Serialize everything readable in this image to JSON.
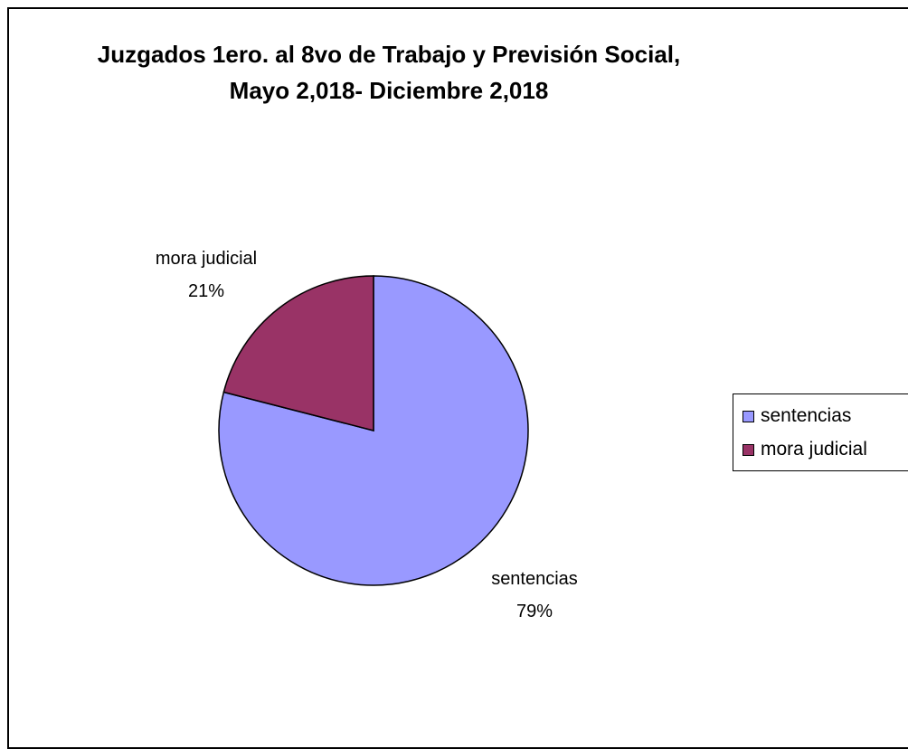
{
  "chart_data": {
    "type": "pie",
    "title": "Juzgados 1ero. al 8vo de Trabajo y Previsión Social,",
    "subtitle": "Mayo 2,018- Diciembre 2,018",
    "slices": [
      {
        "label": "sentencias",
        "value": 79,
        "percent_label": "79%",
        "color": "#9999ff"
      },
      {
        "label": "mora judicial",
        "value": 21,
        "percent_label": "21%",
        "color": "#993366"
      }
    ],
    "legend": {
      "placement": "right",
      "entries": [
        "sentencias",
        "mora judicial"
      ]
    }
  }
}
